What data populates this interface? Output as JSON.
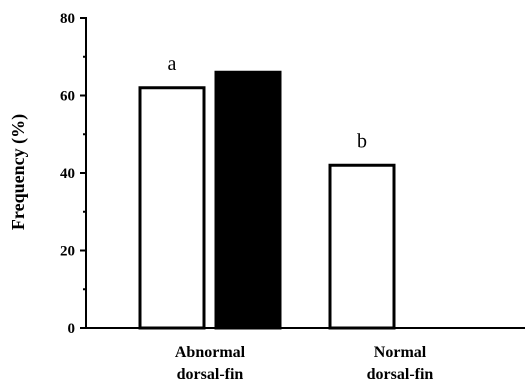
{
  "chart_data": {
    "type": "bar",
    "categories": [
      "Abnormal dorsal-fin",
      "Normal dorsal-fin"
    ],
    "category_lines": [
      [
        "Abnormal",
        "dorsal-fin"
      ],
      [
        "Normal",
        "dorsal-fin"
      ]
    ],
    "ylabel": "Frequency (%)",
    "xlabel": "",
    "ylim": [
      0,
      80
    ],
    "yticks": [
      0,
      20,
      40,
      60,
      80
    ],
    "grid": false,
    "series": [
      {
        "color": "#ffffff",
        "values": [
          62,
          42
        ]
      },
      {
        "color": "#000000",
        "values": [
          66,
          null
        ]
      }
    ],
    "annotations": [
      {
        "category": 0,
        "series": 0,
        "text": "a"
      },
      {
        "category": 1,
        "series": 0,
        "text": "b"
      }
    ]
  }
}
